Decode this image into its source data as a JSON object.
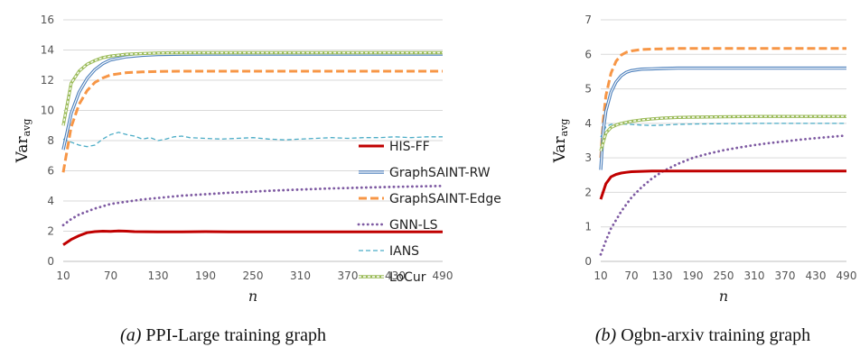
{
  "colors": {
    "HIS-FF": "#c00000",
    "GraphSAINT-RW": "#4a7ebb",
    "GraphSAINT-Edge": "#f79646",
    "GNN-LS": "#7e5aa2",
    "IANS": "#4bacc6",
    "LoCur": "#9bbb59",
    "grid": "#d9d9d9"
  },
  "legend": {
    "items": [
      "HIS-FF",
      "GraphSAINT-RW",
      "GraphSAINT-Edge",
      "GNN-LS",
      "IANS",
      "LoCur"
    ]
  },
  "chart_data": [
    {
      "type": "line",
      "caption_tag": "(a)",
      "caption_text": " PPI-Large training graph",
      "title": "",
      "xlabel": "n",
      "ylabel_main": "Var",
      "ylabel_sub": "avg",
      "xlim": [
        10,
        490
      ],
      "ylim": [
        0,
        16
      ],
      "xticks": [
        10,
        70,
        130,
        190,
        250,
        310,
        370,
        430,
        490
      ],
      "yticks": [
        0,
        2,
        4,
        6,
        8,
        10,
        12,
        14,
        16
      ],
      "grid": "horizontal",
      "series": [
        {
          "name": "HIS-FF",
          "x": [
            10,
            20,
            30,
            40,
            50,
            60,
            70,
            80,
            90,
            100,
            130,
            160,
            190,
            220,
            250,
            310,
            370,
            430,
            490
          ],
          "values": [
            1.1,
            1.45,
            1.7,
            1.9,
            1.97,
            2.0,
            1.98,
            2.02,
            2.0,
            1.97,
            1.95,
            1.96,
            1.97,
            1.95,
            1.95,
            1.95,
            1.95,
            1.95,
            1.95
          ]
        },
        {
          "name": "GraphSAINT-RW",
          "x": [
            10,
            20,
            30,
            40,
            50,
            60,
            70,
            90,
            110,
            130,
            160,
            190,
            250,
            310,
            370,
            430,
            490
          ],
          "values": [
            7.4,
            9.8,
            11.2,
            12.1,
            12.7,
            13.1,
            13.35,
            13.55,
            13.65,
            13.7,
            13.72,
            13.73,
            13.73,
            13.73,
            13.73,
            13.73,
            13.73
          ]
        },
        {
          "name": "GraphSAINT-Edge",
          "x": [
            10,
            20,
            30,
            40,
            50,
            60,
            70,
            90,
            110,
            130,
            160,
            190,
            250,
            310,
            370,
            430,
            490
          ],
          "values": [
            5.9,
            8.9,
            10.4,
            11.3,
            11.85,
            12.15,
            12.35,
            12.5,
            12.55,
            12.58,
            12.6,
            12.6,
            12.6,
            12.6,
            12.6,
            12.6,
            12.6
          ]
        },
        {
          "name": "GNN-LS",
          "x": [
            10,
            20,
            30,
            40,
            50,
            70,
            90,
            110,
            130,
            160,
            190,
            220,
            250,
            280,
            310,
            340,
            370,
            400,
            430,
            460,
            490
          ],
          "values": [
            2.4,
            2.8,
            3.1,
            3.3,
            3.5,
            3.8,
            3.95,
            4.1,
            4.2,
            4.35,
            4.45,
            4.55,
            4.62,
            4.7,
            4.76,
            4.82,
            4.86,
            4.9,
            4.94,
            4.97,
            5.0
          ]
        },
        {
          "name": "IANS",
          "x": [
            10,
            20,
            30,
            40,
            50,
            60,
            70,
            80,
            90,
            100,
            110,
            120,
            130,
            140,
            150,
            160,
            170,
            190,
            210,
            230,
            250,
            270,
            290,
            310,
            330,
            350,
            370,
            390,
            410,
            430,
            450,
            470,
            490
          ],
          "values": [
            8.1,
            7.9,
            7.7,
            7.6,
            7.7,
            8.1,
            8.4,
            8.55,
            8.4,
            8.3,
            8.1,
            8.2,
            8.0,
            8.1,
            8.25,
            8.3,
            8.2,
            8.15,
            8.1,
            8.15,
            8.2,
            8.1,
            8.05,
            8.1,
            8.15,
            8.2,
            8.15,
            8.2,
            8.2,
            8.25,
            8.2,
            8.25,
            8.25
          ]
        },
        {
          "name": "LoCur",
          "x": [
            10,
            20,
            30,
            40,
            50,
            60,
            70,
            90,
            110,
            130,
            160,
            190,
            250,
            310,
            370,
            430,
            490
          ],
          "values": [
            9.0,
            11.8,
            12.6,
            13.05,
            13.3,
            13.5,
            13.6,
            13.72,
            13.77,
            13.8,
            13.82,
            13.82,
            13.82,
            13.82,
            13.82,
            13.82,
            13.82
          ]
        }
      ]
    },
    {
      "type": "line",
      "caption_tag": "(b)",
      "caption_text": " Ogbn-arxiv training graph",
      "title": "",
      "xlabel": "n",
      "ylabel_main": "Var",
      "ylabel_sub": "avg",
      "xlim": [
        10,
        490
      ],
      "ylim": [
        0,
        7
      ],
      "xticks": [
        10,
        70,
        130,
        190,
        250,
        310,
        370,
        430,
        490
      ],
      "yticks": [
        0,
        1,
        2,
        3,
        4,
        5,
        6,
        7
      ],
      "grid": "horizontal",
      "series": [
        {
          "name": "HIS-FF",
          "x": [
            10,
            20,
            30,
            40,
            50,
            60,
            70,
            90,
            110,
            130,
            160,
            190,
            250,
            310,
            370,
            430,
            490
          ],
          "values": [
            1.8,
            2.25,
            2.45,
            2.52,
            2.56,
            2.58,
            2.6,
            2.61,
            2.62,
            2.62,
            2.62,
            2.62,
            2.62,
            2.62,
            2.62,
            2.62,
            2.62
          ]
        },
        {
          "name": "GraphSAINT-RW",
          "x": [
            10,
            15,
            20,
            30,
            40,
            50,
            60,
            70,
            90,
            110,
            130,
            160,
            190,
            250,
            310,
            370,
            430,
            490
          ],
          "values": [
            2.65,
            3.8,
            4.35,
            4.9,
            5.2,
            5.38,
            5.48,
            5.53,
            5.57,
            5.58,
            5.59,
            5.6,
            5.6,
            5.6,
            5.6,
            5.6,
            5.6,
            5.6
          ]
        },
        {
          "name": "GraphSAINT-Edge",
          "x": [
            10,
            15,
            20,
            30,
            40,
            50,
            60,
            70,
            90,
            110,
            130,
            160,
            190,
            250,
            310,
            370,
            430,
            490
          ],
          "values": [
            3.0,
            4.1,
            4.8,
            5.45,
            5.8,
            5.98,
            6.06,
            6.1,
            6.14,
            6.15,
            6.16,
            6.17,
            6.17,
            6.17,
            6.17,
            6.17,
            6.17,
            6.17
          ]
        },
        {
          "name": "GNN-LS",
          "x": [
            10,
            20,
            30,
            40,
            50,
            70,
            90,
            110,
            130,
            160,
            190,
            220,
            250,
            280,
            310,
            340,
            370,
            400,
            430,
            460,
            490
          ],
          "values": [
            0.2,
            0.6,
            0.95,
            1.2,
            1.45,
            1.85,
            2.15,
            2.4,
            2.6,
            2.82,
            3.0,
            3.12,
            3.22,
            3.3,
            3.37,
            3.43,
            3.48,
            3.53,
            3.57,
            3.61,
            3.65
          ]
        },
        {
          "name": "IANS",
          "x": [
            10,
            20,
            30,
            50,
            70,
            90,
            110,
            130,
            160,
            190,
            250,
            310,
            370,
            430,
            490
          ],
          "values": [
            3.6,
            3.9,
            3.97,
            3.98,
            3.97,
            3.95,
            3.94,
            3.95,
            3.97,
            3.98,
            3.99,
            4.0,
            4.0,
            4.0,
            4.0
          ]
        },
        {
          "name": "LoCur",
          "x": [
            10,
            20,
            30,
            40,
            50,
            70,
            90,
            110,
            130,
            160,
            190,
            250,
            310,
            370,
            430,
            490
          ],
          "values": [
            3.2,
            3.72,
            3.88,
            3.95,
            4.0,
            4.06,
            4.1,
            4.13,
            4.15,
            4.17,
            4.18,
            4.19,
            4.2,
            4.2,
            4.2,
            4.2
          ]
        }
      ]
    }
  ]
}
